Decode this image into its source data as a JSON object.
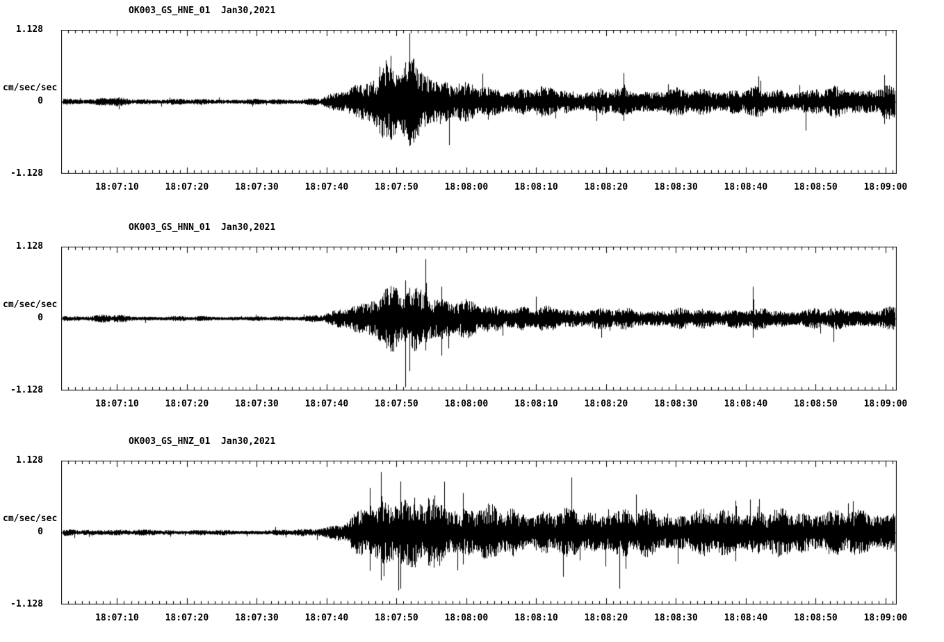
{
  "page": {
    "background": "#ffffff",
    "text_color": "#000000"
  },
  "chart_data": [
    {
      "type": "line",
      "subtype": "seismogram-waveform",
      "title": "OK003_GS_HNE_01  Jan30,2021",
      "ylabel": "cm/sec/sec",
      "ylim": [
        -1.128,
        1.128
      ],
      "y_ticks": [
        {
          "value": 1.128,
          "label": "1.128"
        },
        {
          "value": 0,
          "label": "0"
        },
        {
          "value": -1.128,
          "label": "-1.128"
        }
      ],
      "duration_s": 119.5,
      "x_major_tick_interval_s": 10,
      "x_minor_tick_interval_s": 1,
      "x_ticks": [
        {
          "t": 8,
          "label": "18:07:10"
        },
        {
          "t": 18,
          "label": "18:07:20"
        },
        {
          "t": 28,
          "label": "18:07:30"
        },
        {
          "t": 38,
          "label": "18:07:40"
        },
        {
          "t": 48,
          "label": "18:07:50"
        },
        {
          "t": 58,
          "label": "18:08:00"
        },
        {
          "t": 68,
          "label": "18:08:10"
        },
        {
          "t": 78,
          "label": "18:08:20"
        },
        {
          "t": 88,
          "label": "18:08:30"
        },
        {
          "t": 98,
          "label": "18:08:40"
        },
        {
          "t": 108,
          "label": "18:08:50"
        },
        {
          "t": 118,
          "label": "18:09:00"
        }
      ],
      "color": "#000000",
      "seed": 7,
      "spike_prob": 0.012,
      "envelope": {
        "t": [
          0,
          4,
          6.5,
          8,
          10,
          20,
          30,
          34,
          37,
          40,
          42.5,
          44.5,
          46.5,
          48,
          50,
          52,
          54,
          56,
          58,
          62,
          68,
          75,
          82,
          90,
          98,
          106,
          112,
          119.5
        ],
        "amp": [
          0.045,
          0.04,
          0.065,
          0.055,
          0.04,
          0.038,
          0.035,
          0.04,
          0.06,
          0.14,
          0.28,
          0.42,
          0.55,
          0.5,
          0.55,
          0.5,
          0.38,
          0.3,
          0.24,
          0.2,
          0.19,
          0.17,
          0.19,
          0.17,
          0.19,
          0.17,
          0.2,
          0.22
        ]
      },
      "spikes": [
        {
          "t": 45.6,
          "up": 0.55,
          "down": 0.5
        },
        {
          "t": 47.2,
          "up": 0.72,
          "down": 0.6
        },
        {
          "t": 49.9,
          "up": 0.6,
          "down": 0.68
        },
        {
          "t": 80.5,
          "up": 0.45,
          "down": 0.3
        },
        {
          "t": 117.8,
          "up": 0.42,
          "down": 0.35
        }
      ]
    },
    {
      "type": "line",
      "subtype": "seismogram-waveform",
      "title": "OK003_GS_HNN_01  Jan30,2021",
      "ylabel": "cm/sec/sec",
      "ylim": [
        -1.128,
        1.128
      ],
      "y_ticks": [
        {
          "value": 1.128,
          "label": "1.128"
        },
        {
          "value": 0,
          "label": "0"
        },
        {
          "value": -1.128,
          "label": "-1.128"
        }
      ],
      "duration_s": 119.5,
      "x_major_tick_interval_s": 10,
      "x_minor_tick_interval_s": 1,
      "x_ticks": [
        {
          "t": 8,
          "label": "18:07:10"
        },
        {
          "t": 18,
          "label": "18:07:20"
        },
        {
          "t": 28,
          "label": "18:07:30"
        },
        {
          "t": 38,
          "label": "18:07:40"
        },
        {
          "t": 48,
          "label": "18:07:50"
        },
        {
          "t": 58,
          "label": "18:08:00"
        },
        {
          "t": 68,
          "label": "18:08:10"
        },
        {
          "t": 78,
          "label": "18:08:20"
        },
        {
          "t": 88,
          "label": "18:08:30"
        },
        {
          "t": 98,
          "label": "18:08:40"
        },
        {
          "t": 108,
          "label": "18:08:50"
        },
        {
          "t": 118,
          "label": "18:09:00"
        }
      ],
      "color": "#000000",
      "seed": 13,
      "spike_prob": 0.01,
      "envelope": {
        "t": [
          0,
          4,
          6,
          8,
          10,
          20,
          30,
          34,
          37,
          40,
          42.5,
          44.5,
          46,
          48,
          50,
          52,
          54,
          56,
          60,
          65,
          72,
          80,
          88,
          96,
          104,
          112,
          119.5
        ],
        "amp": [
          0.04,
          0.038,
          0.06,
          0.05,
          0.035,
          0.033,
          0.03,
          0.038,
          0.055,
          0.12,
          0.24,
          0.33,
          0.4,
          0.44,
          0.4,
          0.46,
          0.36,
          0.28,
          0.2,
          0.17,
          0.15,
          0.14,
          0.13,
          0.14,
          0.13,
          0.14,
          0.15
        ]
      },
      "spikes": [
        {
          "t": 49.3,
          "up": 0.6,
          "down": 0.55
        },
        {
          "t": 52.1,
          "up": 0.93,
          "down": 0.5
        },
        {
          "t": 54.4,
          "up": 0.5,
          "down": 0.58
        },
        {
          "t": 99,
          "up": 0.5,
          "down": 0.3
        }
      ]
    },
    {
      "type": "line",
      "subtype": "seismogram-waveform",
      "title": "OK003_GS_HNZ_01  Jan30,2021",
      "ylabel": "cm/sec/sec",
      "ylim": [
        -1.128,
        1.128
      ],
      "y_ticks": [
        {
          "value": 1.128,
          "label": "1.128"
        },
        {
          "value": 0,
          "label": "0"
        },
        {
          "value": -1.128,
          "label": "-1.128"
        }
      ],
      "duration_s": 119.5,
      "x_major_tick_interval_s": 10,
      "x_minor_tick_interval_s": 1,
      "x_ticks": [
        {
          "t": 8,
          "label": "18:07:10"
        },
        {
          "t": 18,
          "label": "18:07:20"
        },
        {
          "t": 28,
          "label": "18:07:30"
        },
        {
          "t": 38,
          "label": "18:07:40"
        },
        {
          "t": 48,
          "label": "18:07:50"
        },
        {
          "t": 58,
          "label": "18:08:00"
        },
        {
          "t": 68,
          "label": "18:08:10"
        },
        {
          "t": 78,
          "label": "18:08:20"
        },
        {
          "t": 88,
          "label": "18:08:30"
        },
        {
          "t": 98,
          "label": "18:08:40"
        },
        {
          "t": 108,
          "label": "18:08:50"
        },
        {
          "t": 118,
          "label": "18:09:00"
        }
      ],
      "color": "#000000",
      "seed": 23,
      "spike_prob": 0.018,
      "envelope": {
        "t": [
          0,
          5,
          7,
          9,
          20,
          30,
          33,
          36,
          39,
          41,
          43,
          45,
          46.5,
          48,
          50,
          52.5,
          55,
          58,
          62,
          66,
          72,
          78,
          84,
          90,
          96,
          102,
          108,
          114,
          119.5
        ],
        "amp": [
          0.04,
          0.038,
          0.05,
          0.04,
          0.035,
          0.033,
          0.04,
          0.06,
          0.1,
          0.18,
          0.3,
          0.45,
          0.6,
          0.52,
          0.45,
          0.5,
          0.42,
          0.38,
          0.34,
          0.32,
          0.3,
          0.33,
          0.3,
          0.28,
          0.33,
          0.3,
          0.32,
          0.29,
          0.33
        ]
      },
      "spikes": [
        {
          "t": 44.2,
          "up": 0.7,
          "down": 0.6
        },
        {
          "t": 45.8,
          "up": 0.95,
          "down": 0.75
        },
        {
          "t": 48.6,
          "up": 0.8,
          "down": 0.88
        },
        {
          "t": 57.5,
          "up": 0.62,
          "down": 0.5
        },
        {
          "t": 96.5,
          "up": 0.5,
          "down": 0.45
        }
      ]
    }
  ]
}
